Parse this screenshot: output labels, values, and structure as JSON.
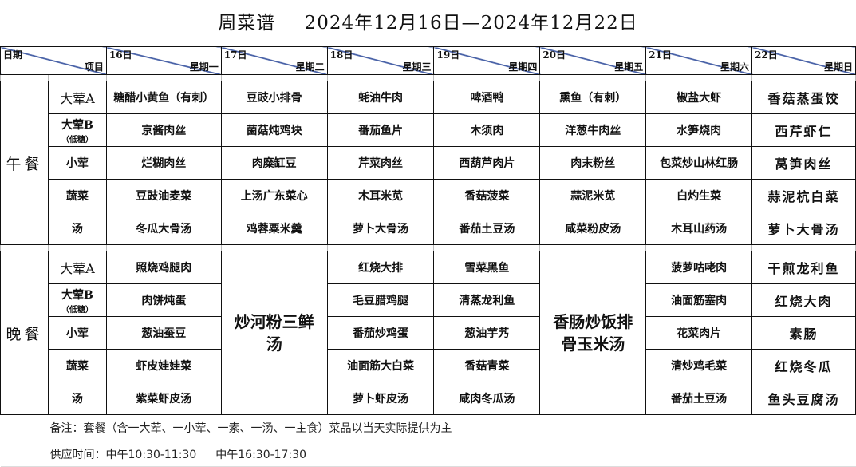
{
  "header": {
    "title": "周菜谱",
    "date_range": "2024年12月16日—2024年12月22日"
  },
  "corner": {
    "top": "日期",
    "bottom": "项目"
  },
  "days": [
    {
      "date": "16日",
      "weekday": "星期一"
    },
    {
      "date": "17日",
      "weekday": "星期二"
    },
    {
      "date": "18日",
      "weekday": "星期三"
    },
    {
      "date": "19日",
      "weekday": "星期四"
    },
    {
      "date": "20日",
      "weekday": "星期五"
    },
    {
      "date": "21日",
      "weekday": "星期六"
    },
    {
      "date": "22日",
      "weekday": "星期日"
    }
  ],
  "categories": [
    {
      "name": "大荤A",
      "note": ""
    },
    {
      "name": "大荤B",
      "note": "（低糖）"
    },
    {
      "name": "小荤",
      "note": ""
    },
    {
      "name": "蔬菜",
      "note": ""
    },
    {
      "name": "汤",
      "note": ""
    }
  ],
  "lunch": {
    "label": "午餐",
    "rows": [
      [
        "糖醋小黄鱼（有刺）",
        "豆豉小排骨",
        "蚝油牛肉",
        "啤酒鸭",
        "熏鱼（有刺）",
        "椒盐大虾",
        "香菇蒸蛋饺"
      ],
      [
        "京酱肉丝",
        "菌菇炖鸡块",
        "番茄鱼片",
        "木须肉",
        "洋葱牛肉丝",
        "水笋烧肉",
        "西芹虾仁"
      ],
      [
        "烂糊肉丝",
        "肉糜缸豆",
        "芹菜肉丝",
        "西葫芦肉片",
        "肉末粉丝",
        "包菜炒山林红肠",
        "莴笋肉丝"
      ],
      [
        "豆豉油麦菜",
        "上汤广东菜心",
        "木耳米苋",
        "香菇菠菜",
        "蒜泥米苋",
        "白灼生菜",
        "蒜泥杭白菜"
      ],
      [
        "冬瓜大骨汤",
        "鸡蓉粟米羹",
        "萝卜大骨汤",
        "番茄土豆汤",
        "咸菜粉皮汤",
        "木耳山药汤",
        "萝卜大骨汤"
      ]
    ]
  },
  "dinner": {
    "label": "晚餐",
    "merged": {
      "1": "炒河粉三鲜汤",
      "4": "香肠炒饭排骨玉米汤"
    },
    "rows": [
      [
        "照烧鸡腿肉",
        "",
        "红烧大排",
        "雪菜黑鱼",
        "",
        "菠萝咕咾肉",
        "干煎龙利鱼"
      ],
      [
        "肉饼炖蛋",
        "",
        "毛豆腊鸡腿",
        "清蒸龙利鱼",
        "",
        "油面筋塞肉",
        "红烧大肉"
      ],
      [
        "葱油蚕豆",
        "",
        "番茄炒鸡蛋",
        "葱油芋艿",
        "",
        "花菜肉片",
        "素肠"
      ],
      [
        "虾皮娃娃菜",
        "",
        "油面筋大白菜",
        "香菇青菜",
        "",
        "清炒鸡毛菜",
        "红烧冬瓜"
      ],
      [
        "紫菜虾皮汤",
        "",
        "萝卜虾皮汤",
        "咸肉冬瓜汤",
        "",
        "番茄土豆汤",
        "鱼头豆腐汤"
      ]
    ]
  },
  "footer": {
    "note": "备注：套餐（含一大荤、一小荤、一素、一汤、一主食）菜品以当天实际提供为主",
    "hours_label": "供应时间：中午10:30-11:30",
    "hours_evening": "中午16:30-17:30"
  },
  "colors": {
    "diagonal": "#4a63a8",
    "border": "#111111"
  }
}
